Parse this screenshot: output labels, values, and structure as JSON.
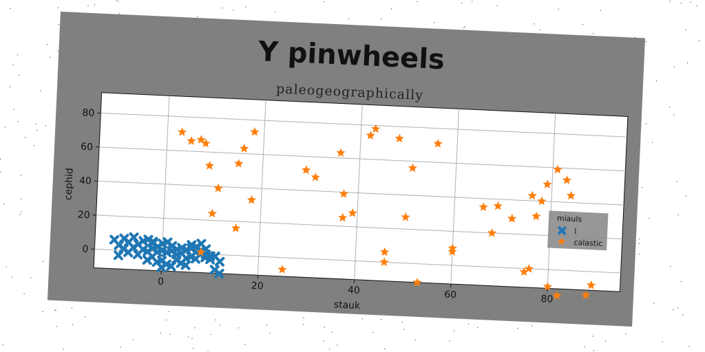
{
  "chart_data": {
    "type": "scatter",
    "title": "Y pinwheels",
    "subtitle": "paleogeographically",
    "xlabel": "stauk",
    "ylabel": "cephid",
    "xlim": [
      -14,
      95
    ],
    "ylim": [
      -11,
      92
    ],
    "xticks": [
      "0",
      "20",
      "40",
      "60",
      "80"
    ],
    "yticks": [
      "0",
      "20",
      "40",
      "60",
      "80"
    ],
    "grid": true,
    "legend": {
      "title": "miauls",
      "position": "right"
    },
    "series": [
      {
        "name": "l",
        "marker": "x",
        "color": "#1f77b4",
        "points": [
          [
            -10,
            6
          ],
          [
            -9,
            3
          ],
          [
            -8,
            7
          ],
          [
            -7,
            5
          ],
          [
            -6,
            8
          ],
          [
            -5,
            4
          ],
          [
            -4,
            6
          ],
          [
            -3,
            7
          ],
          [
            -2,
            5
          ],
          [
            -1,
            3
          ],
          [
            -6,
            2
          ],
          [
            -4,
            1
          ],
          [
            -2,
            2
          ],
          [
            -8,
            1
          ],
          [
            -9,
            -3
          ],
          [
            -7,
            -1
          ],
          [
            -5,
            -2
          ],
          [
            -3,
            0
          ],
          [
            -1,
            0
          ],
          [
            0,
            1
          ],
          [
            1,
            0
          ],
          [
            2,
            1
          ],
          [
            3,
            2
          ],
          [
            4,
            0
          ],
          [
            5,
            2
          ],
          [
            6,
            3
          ],
          [
            7,
            1
          ],
          [
            8,
            2
          ],
          [
            9,
            0
          ],
          [
            10,
            -1
          ],
          [
            -2,
            -3
          ],
          [
            -1,
            -6
          ],
          [
            0,
            -5
          ],
          [
            1,
            -7
          ],
          [
            2,
            -8
          ],
          [
            3,
            -4
          ],
          [
            4,
            -6
          ],
          [
            5,
            -7
          ],
          [
            -3,
            -5
          ],
          [
            0,
            -9
          ],
          [
            6,
            -2
          ],
          [
            7,
            -3
          ],
          [
            8,
            0
          ],
          [
            9,
            -2
          ],
          [
            10,
            -3
          ],
          [
            11,
            -1
          ],
          [
            12,
            -4
          ],
          [
            11,
            -9
          ],
          [
            12,
            -11
          ],
          [
            0,
            5
          ],
          [
            2,
            4
          ],
          [
            4,
            3
          ],
          [
            6,
            5
          ],
          [
            8,
            6
          ],
          [
            1,
            6
          ],
          [
            -2,
            6
          ],
          [
            3,
            -1
          ],
          [
            5,
            -3
          ],
          [
            7,
            4
          ],
          [
            9,
            3
          ]
        ]
      },
      {
        "name": "calastic",
        "marker": "star",
        "color": "#ff7f0e",
        "points": [
          [
            3,
            71
          ],
          [
            5,
            66
          ],
          [
            7,
            67
          ],
          [
            8,
            65
          ],
          [
            9,
            52
          ],
          [
            11,
            39
          ],
          [
            10,
            24
          ],
          [
            8,
            1
          ],
          [
            15,
            54
          ],
          [
            16,
            63
          ],
          [
            18,
            73
          ],
          [
            18,
            33
          ],
          [
            15,
            16
          ],
          [
            25,
            -7
          ],
          [
            29,
            52
          ],
          [
            31,
            48
          ],
          [
            36,
            63
          ],
          [
            37,
            39
          ],
          [
            37,
            25
          ],
          [
            39,
            28
          ],
          [
            42,
            74
          ],
          [
            43,
            78
          ],
          [
            48,
            73
          ],
          [
            56,
            71
          ],
          [
            51,
            56
          ],
          [
            50,
            27
          ],
          [
            46,
            6
          ],
          [
            46,
            0
          ],
          [
            53,
            -11
          ],
          [
            60,
            10
          ],
          [
            60,
            8
          ],
          [
            66,
            35
          ],
          [
            68,
            20
          ],
          [
            69,
            36
          ],
          [
            72,
            29
          ],
          [
            75,
            -2
          ],
          [
            76,
            0
          ],
          [
            76,
            43
          ],
          [
            77,
            31
          ],
          [
            78,
            40
          ],
          [
            79,
            50
          ],
          [
            80,
            -10
          ],
          [
            81,
            59
          ],
          [
            82,
            -15
          ],
          [
            83,
            53
          ],
          [
            84,
            44
          ],
          [
            88,
            -14
          ],
          [
            89,
            -8
          ]
        ]
      }
    ]
  }
}
